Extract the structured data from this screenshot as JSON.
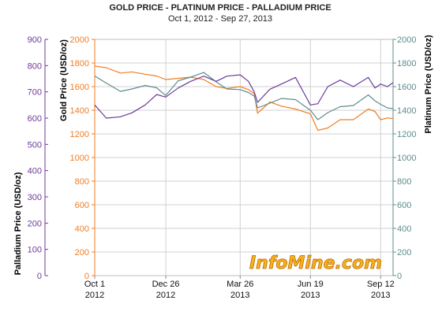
{
  "title": "GOLD PRICE - PLATINUM PRICE - PALLADIUM PRICE",
  "subtitle": "Oct 1, 2012 - Sep 27, 2013",
  "watermark": "InfoMine.com",
  "colors": {
    "gold": "#f07d24",
    "platinum": "#5e8c8c",
    "palladium": "#6d3a9a",
    "grid": "#d0d0d0"
  },
  "chart_data": {
    "type": "line",
    "title": "GOLD PRICE - PLATINUM PRICE - PALLADIUM PRICE",
    "subtitle": "Oct 1, 2012 - Sep 27, 2013",
    "x_ticks": [
      {
        "x": "2012-10-01",
        "line1": "Oct 1",
        "line2": "2012"
      },
      {
        "x": "2012-12-26",
        "line1": "Dec 26",
        "line2": "2012"
      },
      {
        "x": "2013-03-26",
        "line1": "Mar 26",
        "line2": "2013"
      },
      {
        "x": "2013-06-19",
        "line1": "Jun 19",
        "line2": "2013"
      },
      {
        "x": "2013-09-12",
        "line1": "Sep 12",
        "line2": "2013"
      }
    ],
    "xlim": [
      "2012-10-01",
      "2013-09-27"
    ],
    "axes": {
      "palladium": {
        "label": "Palladium Price (USD/oz)",
        "ylim": [
          0,
          900
        ],
        "ticks": [
          0,
          100,
          200,
          300,
          400,
          500,
          600,
          700,
          800,
          900
        ]
      },
      "gold": {
        "label": "Gold Price (USD/oz)",
        "ylim": [
          0,
          2000
        ],
        "ticks": [
          0,
          200,
          400,
          600,
          800,
          1000,
          1200,
          1400,
          1600,
          1800,
          2000
        ]
      },
      "platinum": {
        "label": "Platinum Price (USD/oz)",
        "ylim": [
          0,
          2000
        ],
        "ticks": [
          0,
          200,
          400,
          600,
          800,
          1000,
          1200,
          1400,
          1600,
          1800,
          2000
        ]
      }
    },
    "grid": true,
    "series": [
      {
        "name": "Gold",
        "axis": "gold",
        "x": [
          "2012-10-01",
          "2012-10-15",
          "2012-11-01",
          "2012-11-15",
          "2012-12-01",
          "2012-12-15",
          "2012-12-26",
          "2013-01-10",
          "2013-01-25",
          "2013-02-10",
          "2013-02-25",
          "2013-03-10",
          "2013-03-26",
          "2013-04-05",
          "2013-04-12",
          "2013-04-16",
          "2013-05-01",
          "2013-05-15",
          "2013-06-01",
          "2013-06-19",
          "2013-06-28",
          "2013-07-10",
          "2013-07-25",
          "2013-08-10",
          "2013-08-28",
          "2013-09-05",
          "2013-09-12",
          "2013-09-20",
          "2013-09-27"
        ],
        "values": [
          1775,
          1760,
          1715,
          1725,
          1705,
          1690,
          1660,
          1670,
          1680,
          1660,
          1600,
          1585,
          1600,
          1575,
          1540,
          1375,
          1470,
          1435,
          1410,
          1370,
          1230,
          1250,
          1320,
          1320,
          1410,
          1390,
          1320,
          1335,
          1330
        ]
      },
      {
        "name": "Platinum",
        "axis": "platinum",
        "x": [
          "2012-10-01",
          "2012-10-15",
          "2012-11-01",
          "2012-11-15",
          "2012-12-01",
          "2012-12-15",
          "2012-12-26",
          "2013-01-10",
          "2013-01-25",
          "2013-02-10",
          "2013-02-25",
          "2013-03-10",
          "2013-03-26",
          "2013-04-05",
          "2013-04-12",
          "2013-04-16",
          "2013-05-01",
          "2013-05-15",
          "2013-06-01",
          "2013-06-19",
          "2013-06-28",
          "2013-07-10",
          "2013-07-25",
          "2013-08-10",
          "2013-08-28",
          "2013-09-05",
          "2013-09-12",
          "2013-09-20",
          "2013-09-27"
        ],
        "values": [
          1690,
          1630,
          1560,
          1580,
          1610,
          1590,
          1525,
          1650,
          1680,
          1720,
          1640,
          1580,
          1575,
          1550,
          1520,
          1420,
          1460,
          1500,
          1490,
          1400,
          1320,
          1380,
          1430,
          1440,
          1530,
          1480,
          1450,
          1420,
          1415
        ]
      },
      {
        "name": "Palladium",
        "axis": "palladium",
        "x": [
          "2012-10-01",
          "2012-10-15",
          "2012-11-01",
          "2012-11-15",
          "2012-12-01",
          "2012-12-15",
          "2012-12-26",
          "2013-01-10",
          "2013-01-25",
          "2013-02-10",
          "2013-02-25",
          "2013-03-10",
          "2013-03-26",
          "2013-04-05",
          "2013-04-12",
          "2013-04-16",
          "2013-05-01",
          "2013-05-15",
          "2013-06-01",
          "2013-06-19",
          "2013-06-28",
          "2013-07-10",
          "2013-07-25",
          "2013-08-10",
          "2013-08-28",
          "2013-09-05",
          "2013-09-12",
          "2013-09-20",
          "2013-09-27"
        ],
        "values": [
          650,
          600,
          605,
          620,
          650,
          690,
          680,
          715,
          740,
          760,
          740,
          760,
          765,
          740,
          700,
          660,
          710,
          730,
          755,
          650,
          655,
          720,
          745,
          720,
          755,
          715,
          730,
          720,
          735
        ]
      }
    ]
  }
}
